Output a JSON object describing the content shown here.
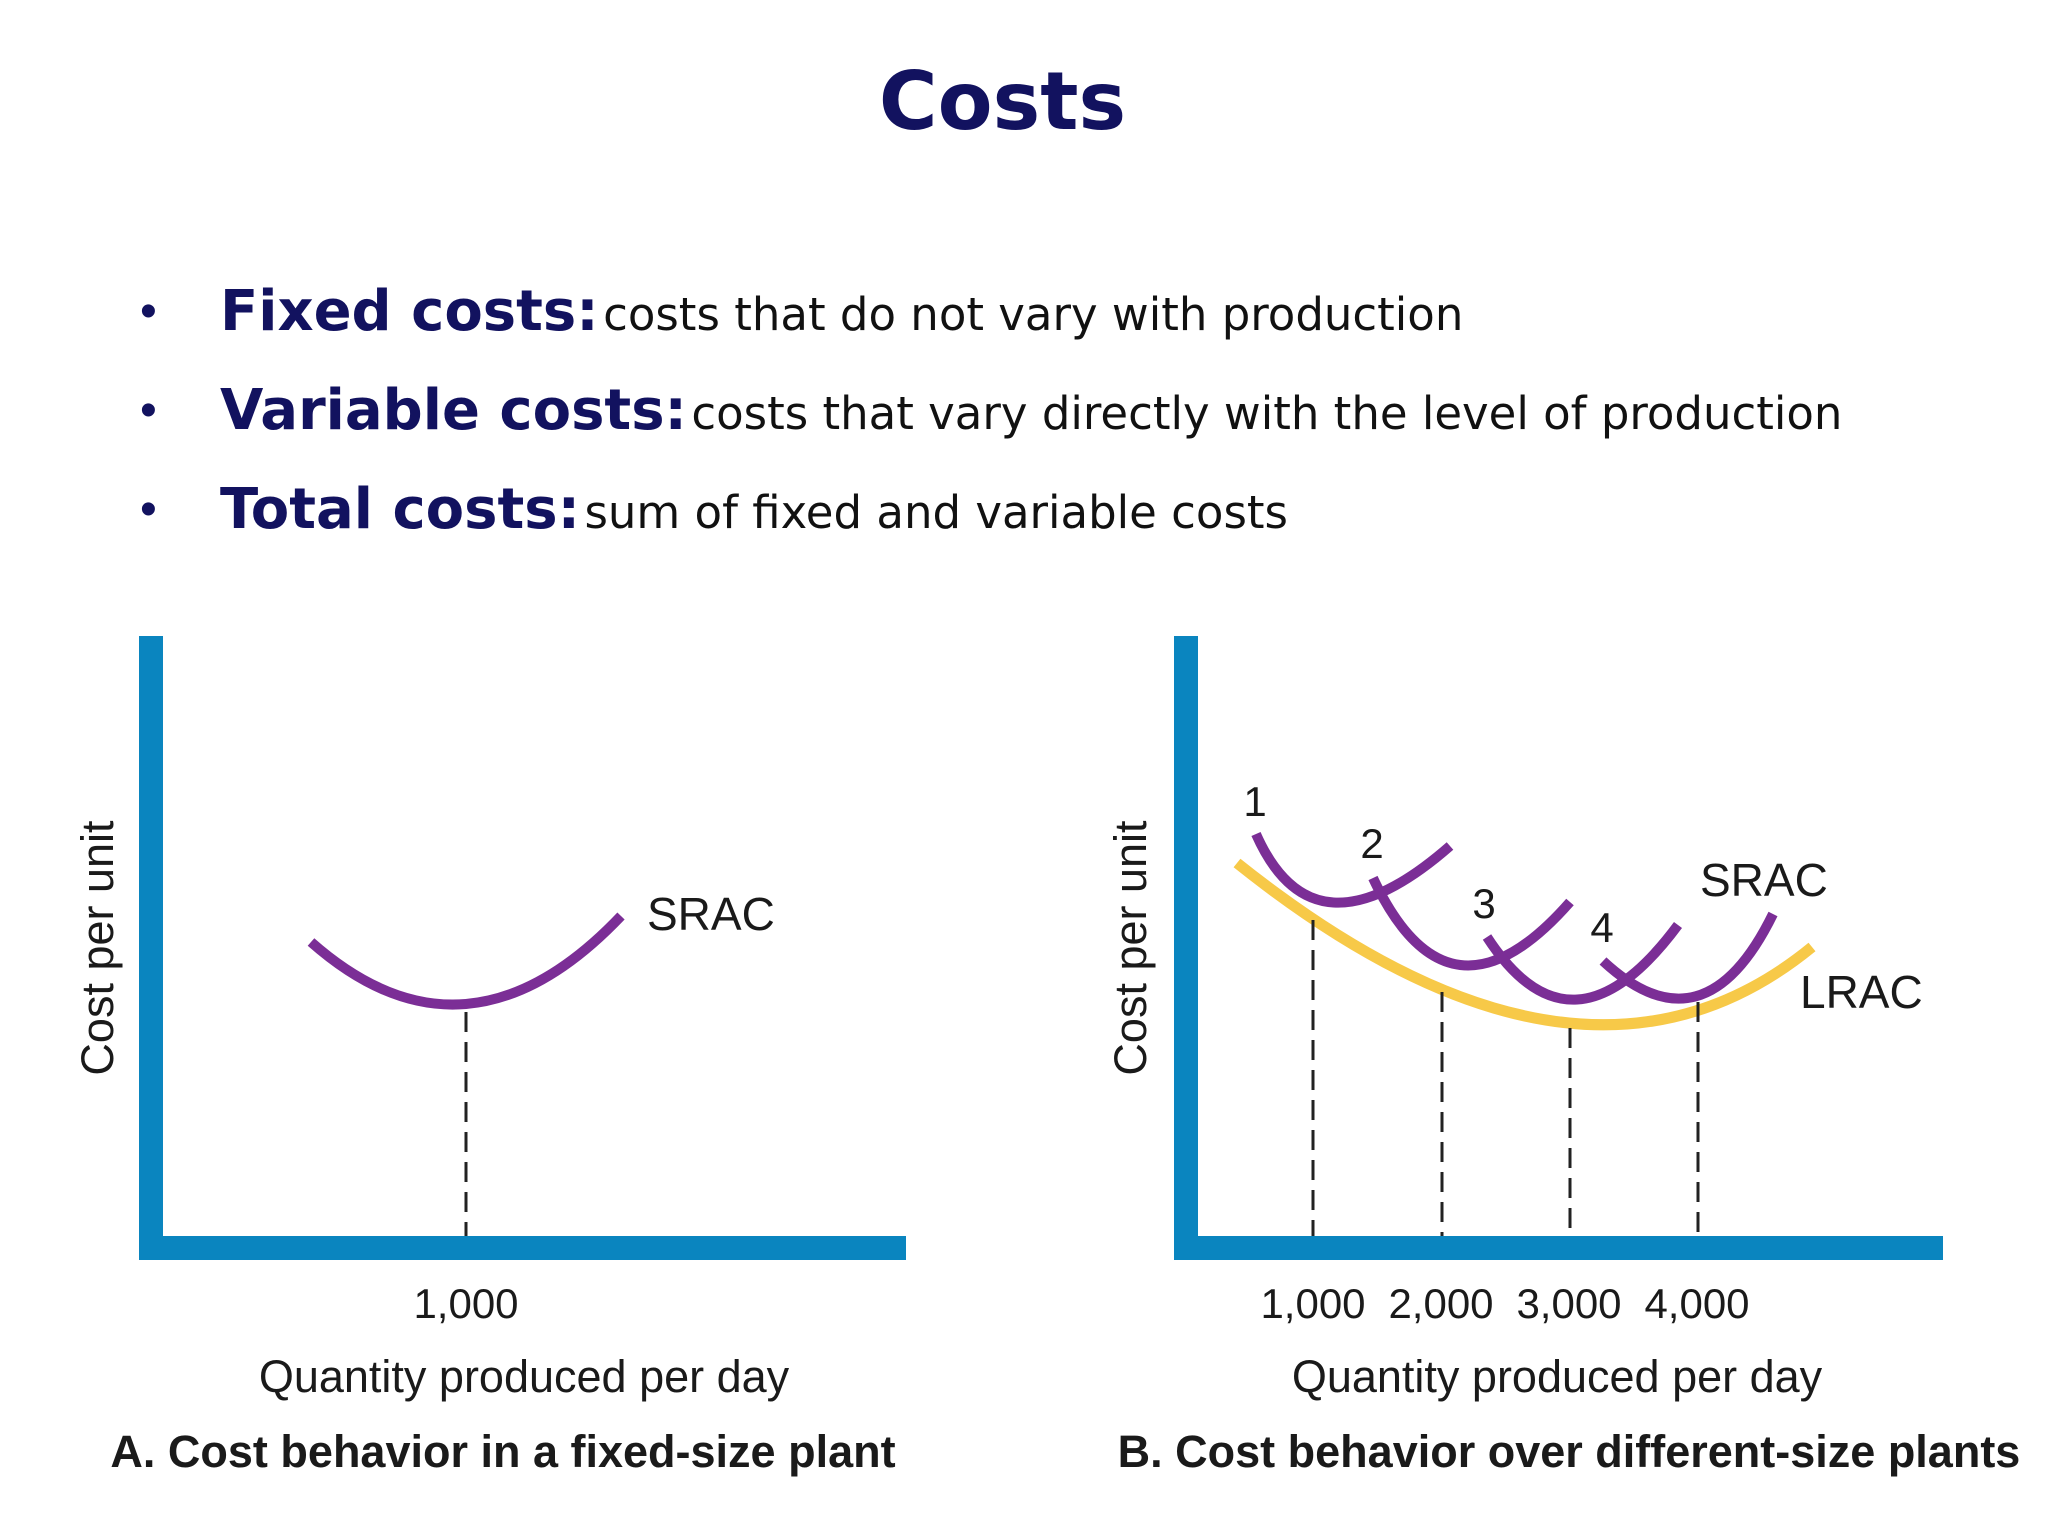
{
  "title": "Costs",
  "bullets": [
    {
      "term": "Fixed costs:",
      "definition": "costs that do not vary with production"
    },
    {
      "term": "Variable costs:",
      "definition": "costs that vary directly with the level of production"
    },
    {
      "term": "Total costs:",
      "definition": "sum of fixed and variable costs"
    }
  ],
  "colors": {
    "title": "#12125f",
    "axis": "#0a85bf",
    "srac": "#7b2e96",
    "lrac": "#f7c948"
  },
  "panel_a": {
    "ylabel": "Cost per unit",
    "xlabel": "Quantity produced per day",
    "tick": "1,000",
    "curve_label": "SRAC",
    "caption": "A. Cost behavior in a fixed-size plant"
  },
  "panel_b": {
    "ylabel": "Cost per unit",
    "xlabel": "Quantity produced per day",
    "ticks": [
      "1,000",
      "2,000",
      "3,000",
      "4,000"
    ],
    "curve_numbers": [
      "1",
      "2",
      "3",
      "4"
    ],
    "srac_label": "SRAC",
    "lrac_label": "LRAC",
    "caption": "B. Cost behavior over different-size plants"
  }
}
